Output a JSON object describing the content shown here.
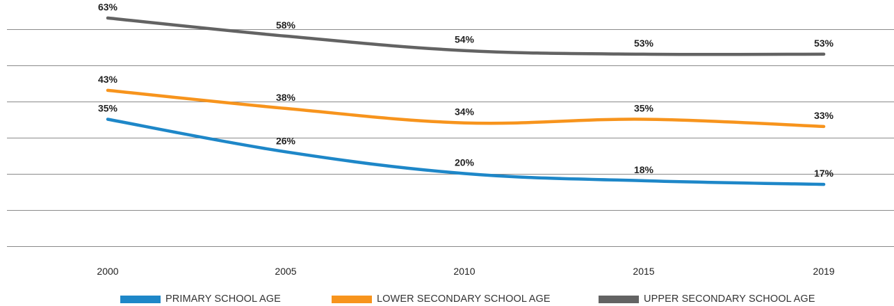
{
  "chart_data": {
    "type": "line",
    "x": [
      "2000",
      "2005",
      "2010",
      "2015",
      "2019"
    ],
    "ylim": [
      0,
      70
    ],
    "grid": true,
    "legend_position": "bottom",
    "series": [
      {
        "name": "PRIMARY SCHOOL AGE",
        "color": "#1e87c8",
        "values": [
          35,
          26,
          20,
          18,
          17
        ],
        "labels": [
          "35%",
          "26%",
          "20%",
          "18%",
          "17%"
        ]
      },
      {
        "name": "LOWER SECONDARY SCHOOL AGE",
        "color": "#f7941d",
        "values": [
          43,
          38,
          34,
          35,
          33
        ],
        "labels": [
          "43%",
          "38%",
          "34%",
          "35%",
          "33%"
        ]
      },
      {
        "name": "UPPER SECONDARY SCHOOL AGE",
        "color": "#636363",
        "values": [
          63,
          58,
          54,
          53,
          53
        ],
        "labels": [
          "63%",
          "58%",
          "54%",
          "53%",
          "53%"
        ]
      }
    ]
  }
}
